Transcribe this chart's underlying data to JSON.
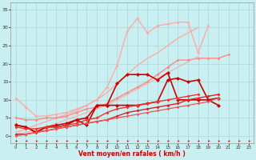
{
  "xlabel": "Vent moyen/en rafales ( km/h )",
  "background_color": "#c9eff1",
  "grid_color": "#a8d8da",
  "xlabel_color": "#cc0000",
  "x_ticks": [
    0,
    1,
    2,
    3,
    4,
    5,
    6,
    7,
    8,
    9,
    10,
    11,
    12,
    13,
    14,
    15,
    16,
    17,
    18,
    19,
    20,
    21,
    22,
    23
  ],
  "ylim": [
    -2,
    37
  ],
  "xlim": [
    -0.5,
    23.5
  ],
  "series": [
    {
      "color": "#ffaaaa",
      "lw": 1.0,
      "marker": "D",
      "ms": 2.0,
      "y": [
        10.5,
        8.0,
        5.5,
        5.5,
        6.0,
        6.5,
        7.5,
        8.5,
        10.0,
        13.5,
        19.5,
        29.0,
        32.5,
        28.5,
        30.5,
        31.0,
        31.5,
        31.5,
        23.0,
        30.5,
        null,
        null,
        null,
        null
      ]
    },
    {
      "color": "#ffaaaa",
      "lw": 1.0,
      "marker": null,
      "ms": 0,
      "y": [
        1.0,
        2.0,
        3.0,
        4.0,
        5.0,
        6.0,
        7.0,
        8.5,
        10.0,
        12.0,
        14.5,
        17.0,
        19.5,
        21.5,
        23.0,
        25.0,
        27.0,
        28.5,
        30.0,
        null,
        null,
        null,
        null,
        null
      ]
    },
    {
      "color": "#ff8888",
      "lw": 1.0,
      "marker": "D",
      "ms": 2.0,
      "y": [
        5.0,
        4.5,
        4.5,
        5.0,
        5.0,
        5.5,
        6.5,
        7.5,
        8.0,
        9.0,
        10.5,
        12.0,
        13.5,
        15.0,
        17.0,
        19.0,
        21.0,
        21.0,
        21.5,
        21.5,
        21.5,
        22.5,
        null,
        null
      ]
    },
    {
      "color": "#ffaaaa",
      "lw": 0.8,
      "marker": null,
      "ms": 0,
      "y": [
        0.5,
        1.0,
        1.5,
        2.5,
        3.5,
        4.5,
        5.5,
        6.5,
        7.5,
        8.5,
        10.0,
        11.5,
        13.0,
        14.5,
        16.0,
        17.5,
        19.0,
        20.5,
        22.0,
        null,
        null,
        null,
        null,
        null
      ]
    },
    {
      "color": "#cc0000",
      "lw": 1.2,
      "marker": "D",
      "ms": 2.5,
      "y": [
        3.0,
        2.5,
        1.0,
        2.5,
        2.5,
        3.0,
        4.5,
        3.0,
        8.5,
        8.5,
        14.5,
        17.0,
        17.0,
        17.0,
        15.5,
        17.5,
        10.0,
        10.0,
        10.0,
        10.0,
        10.5,
        null,
        null,
        null
      ]
    },
    {
      "color": "#cc0000",
      "lw": 1.2,
      "marker": "D",
      "ms": 2.5,
      "y": [
        3.0,
        2.5,
        1.0,
        2.5,
        3.0,
        3.5,
        4.5,
        5.0,
        8.5,
        8.5,
        8.5,
        8.5,
        8.5,
        9.0,
        9.5,
        15.5,
        16.0,
        15.0,
        15.5,
        10.0,
        8.5,
        null,
        null,
        null
      ]
    },
    {
      "color": "#ee3333",
      "lw": 1.0,
      "marker": "D",
      "ms": 2.0,
      "y": [
        2.5,
        2.0,
        2.0,
        2.5,
        2.5,
        3.0,
        3.5,
        4.5,
        5.0,
        6.5,
        7.5,
        8.0,
        8.5,
        9.0,
        9.5,
        10.0,
        10.5,
        11.0,
        11.5,
        null,
        null,
        null,
        null,
        null
      ]
    },
    {
      "color": "#dd2222",
      "lw": 1.0,
      "marker": "D",
      "ms": 2.0,
      "y": [
        0.5,
        0.5,
        1.0,
        1.5,
        2.0,
        2.5,
        3.0,
        3.5,
        4.0,
        4.5,
        5.5,
        6.5,
        7.0,
        7.5,
        8.0,
        8.5,
        9.0,
        10.0,
        10.5,
        11.0,
        11.5,
        null,
        null,
        null
      ]
    },
    {
      "color": "#ee5555",
      "lw": 0.9,
      "marker": "D",
      "ms": 1.8,
      "y": [
        0.0,
        0.5,
        1.0,
        1.5,
        2.0,
        2.5,
        3.0,
        3.5,
        4.0,
        4.5,
        5.0,
        5.5,
        6.0,
        6.5,
        7.0,
        7.5,
        8.0,
        8.5,
        9.0,
        9.5,
        10.5,
        null,
        null,
        null
      ]
    }
  ],
  "yticks": [
    0,
    5,
    10,
    15,
    20,
    25,
    30,
    35
  ],
  "arrow_color": "#cc0000"
}
